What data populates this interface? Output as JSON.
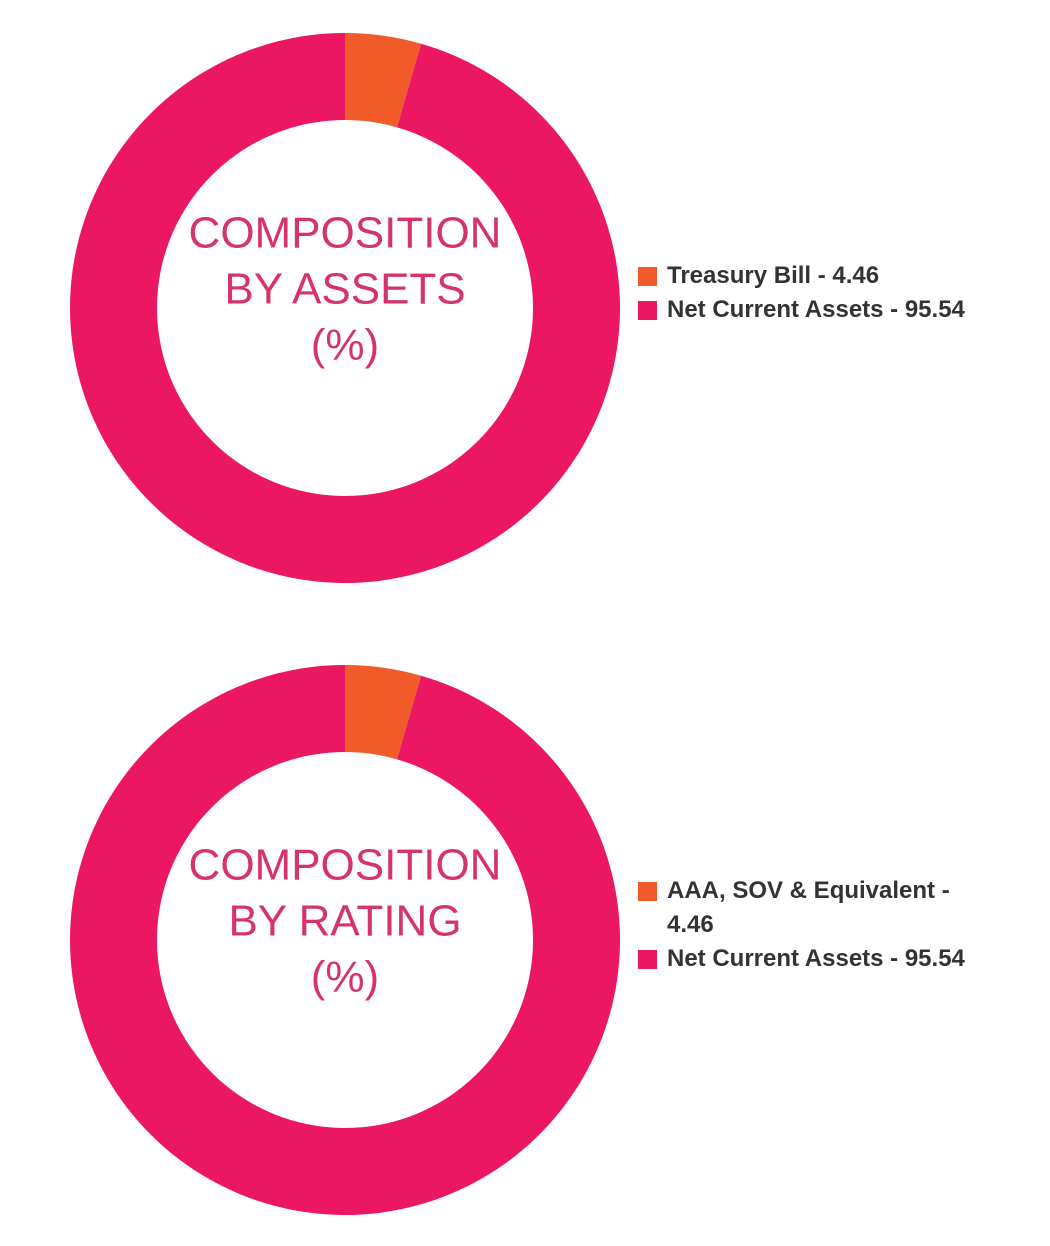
{
  "chart_data": [
    {
      "type": "pie",
      "title": [
        "COMPOSITION",
        "BY ASSETS",
        "(%)"
      ],
      "labels": [
        "Treasury Bill - 4.46",
        "Net Current Assets - 95.54"
      ],
      "values": [
        4.46,
        95.54
      ],
      "colors": [
        "#f15a29",
        "#ec1763"
      ]
    },
    {
      "type": "pie",
      "title": [
        "COMPOSITION",
        "BY RATING",
        "(%)"
      ],
      "labels": [
        "AAA, SOV & Equivalent - 4.46",
        "Net Current Assets - 95.54"
      ],
      "values": [
        4.46,
        95.54
      ],
      "colors": [
        "#f15a29",
        "#ec1763"
      ]
    }
  ]
}
